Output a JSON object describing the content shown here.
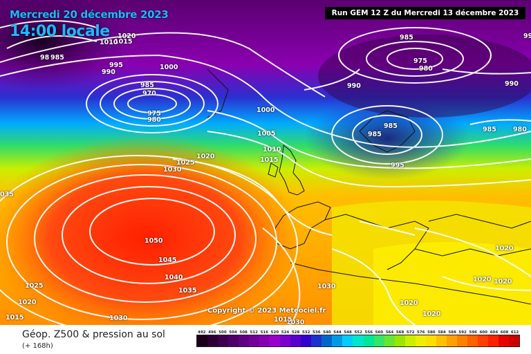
{
  "header": {
    "date": "Mercredi 20 décembre 2023",
    "time": "14:00 locale",
    "run": "Run GEM 12 Z du Mercredi 13 décembre 2023"
  },
  "copyright": "Copyright © 2023 Meteociel.fr",
  "legend": {
    "title": "Géop. Z500 & pression au sol",
    "subtitle": "(+ 168h)",
    "scale": [
      "492",
      "496",
      "500",
      "504",
      "508",
      "512",
      "516",
      "520",
      "524",
      "528",
      "532",
      "536",
      "540",
      "544",
      "548",
      "552",
      "556",
      "560",
      "564",
      "568",
      "572",
      "576",
      "580",
      "584",
      "588",
      "592",
      "596",
      "600",
      "604",
      "608",
      "612"
    ],
    "scale_colors": [
      "#1a001a",
      "#2d0033",
      "#3d004d",
      "#4d0066",
      "#600080",
      "#730099",
      "#8600b3",
      "#9900cc",
      "#7a00cc",
      "#5a00cc",
      "#3300cc",
      "#1a33cc",
      "#0066cc",
      "#0099e6",
      "#00ccff",
      "#00e6cc",
      "#00e699",
      "#33e666",
      "#66e633",
      "#99e600",
      "#ccee00",
      "#eeee00",
      "#ffdd00",
      "#ffc000",
      "#ffa000",
      "#ff8000",
      "#ff6000",
      "#ff4000",
      "#ff2000",
      "#e60000",
      "#cc0000"
    ]
  },
  "isobars": [
    {
      "text": "1020",
      "id": "a"
    },
    {
      "text": "1015",
      "id": "b"
    },
    {
      "text": "1010",
      "id": "c"
    },
    {
      "text": "985",
      "id": "d"
    },
    {
      "text": "98",
      "id": "e"
    },
    {
      "text": "995",
      "id": "f"
    },
    {
      "text": "990",
      "id": "g"
    },
    {
      "text": "1000",
      "id": "h"
    },
    {
      "text": "985",
      "id": "i"
    },
    {
      "text": "970",
      "id": "j"
    },
    {
      "text": "975",
      "id": "k"
    },
    {
      "text": "980",
      "id": "l"
    },
    {
      "text": "985",
      "id": "m"
    },
    {
      "text": "975",
      "id": "n"
    },
    {
      "text": "980",
      "id": "o"
    },
    {
      "text": "990",
      "id": "p"
    },
    {
      "text": "990",
      "id": "q"
    },
    {
      "text": "985",
      "id": "r"
    },
    {
      "text": "980",
      "id": "s"
    },
    {
      "text": "1000",
      "id": "t"
    },
    {
      "text": "1005",
      "id": "u"
    },
    {
      "text": "1010",
      "id": "v"
    },
    {
      "text": "1015",
      "id": "w"
    },
    {
      "text": "985",
      "id": "x"
    },
    {
      "text": "985",
      "id": "y"
    },
    {
      "text": "995",
      "id": "z"
    },
    {
      "text": "1020",
      "id": "aa"
    },
    {
      "text": "1025",
      "id": "ab"
    },
    {
      "text": "1030",
      "id": "ac"
    },
    {
      "text": "1050",
      "id": "ad"
    },
    {
      "text": "1045",
      "id": "ae"
    },
    {
      "text": "1040",
      "id": "af"
    },
    {
      "text": "1035",
      "id": "ag"
    },
    {
      "text": "1030",
      "id": "ah"
    },
    {
      "text": "1025",
      "id": "ai"
    },
    {
      "text": "1020",
      "id": "aj"
    },
    {
      "text": "1015",
      "id": "ak"
    },
    {
      "text": "1030",
      "id": "al"
    },
    {
      "text": "1030",
      "id": "am"
    },
    {
      "text": "1015",
      "id": "an"
    },
    {
      "text": "1020",
      "id": "ao"
    },
    {
      "text": "1020",
      "id": "ap"
    },
    {
      "text": "1020",
      "id": "aq"
    },
    {
      "text": "1020",
      "id": "ar"
    },
    {
      "text": "1020",
      "id": "as"
    },
    {
      "text": "035",
      "id": "at"
    },
    {
      "text": "99",
      "id": "au"
    }
  ]
}
